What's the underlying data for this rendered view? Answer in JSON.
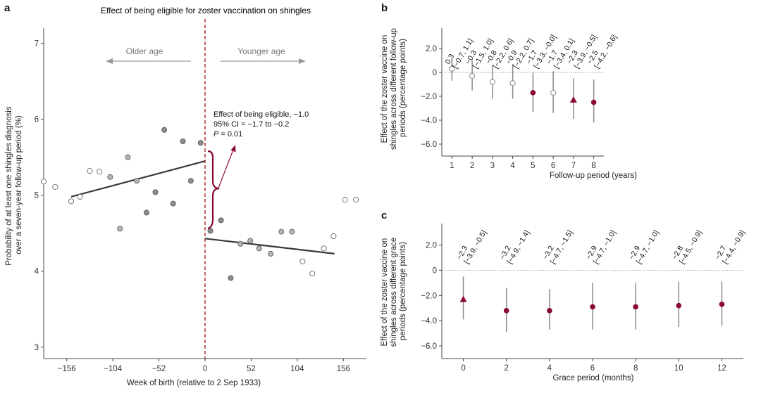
{
  "colors": {
    "accent": "#8b0a32",
    "fit_line": "#3a3a3a",
    "cutoff": "#b22222",
    "grey_point": "#8c8c8c",
    "open_point": "#ffffff",
    "ci_bar": "#8a8a8a",
    "ref_line": "#999999"
  },
  "panels": {
    "a": {
      "label": "a",
      "title": "Effect of being eligible for zoster vaccination on shingles",
      "xlabel": "Week of birth (relative to 2 Sep 1933)",
      "ylabel_lines": [
        "Probability of at least one shingles diagnosis",
        "over a seven-year follow-up period (%)"
      ],
      "older_label": "Older age",
      "younger_label": "Younger age",
      "annotation_lines": [
        "Effect of being eligible, −1.0",
        "95% CI = −1.7 to −0.2"
      ],
      "p_label": "P",
      "p_value": " = 0.01"
    },
    "b": {
      "label": "b",
      "xlabel": "Follow-up period (years)",
      "ylabel_lines": [
        "Effect of the zoster vaccine on",
        "shingles across different follow-up",
        "periods (percentage points)"
      ]
    },
    "c": {
      "label": "c",
      "xlabel": "Grace period (months)",
      "ylabel_lines": [
        "Effect of the zoster vaccine on",
        "shingles across different grace",
        "periods (percentage points)"
      ]
    }
  },
  "chart_data": [
    {
      "type": "scatter",
      "panel": "a",
      "title": "Effect of being eligible for zoster vaccination on shingles",
      "xlabel": "Week of birth (relative to 2 Sep 1933)",
      "ylabel": "Probability of at least one shingles diagnosis over a seven-year follow-up period (%)",
      "xlim": [
        -182,
        182
      ],
      "ylim": [
        2.85,
        7.2
      ],
      "xticks": [
        -156,
        -104,
        -52,
        0,
        52,
        104,
        156
      ],
      "yticks": [
        3,
        4,
        5,
        6,
        7
      ],
      "cutoff_x": 0,
      "points": [
        {
          "x": -182,
          "y": 5.18,
          "style": "open"
        },
        {
          "x": -169,
          "y": 5.11,
          "style": "open"
        },
        {
          "x": -151,
          "y": 4.92,
          "style": "open"
        },
        {
          "x": -141,
          "y": 4.98,
          "style": "open"
        },
        {
          "x": -130,
          "y": 5.32,
          "style": "open"
        },
        {
          "x": -119,
          "y": 5.31,
          "style": "open"
        },
        {
          "x": -107,
          "y": 5.24,
          "style": "grey_light"
        },
        {
          "x": -96,
          "y": 4.56,
          "style": "grey_light"
        },
        {
          "x": -87,
          "y": 5.5,
          "style": "grey_light"
        },
        {
          "x": -77,
          "y": 5.19,
          "style": "grey_light"
        },
        {
          "x": -66,
          "y": 4.77,
          "style": "grey"
        },
        {
          "x": -56,
          "y": 5.04,
          "style": "grey"
        },
        {
          "x": -46,
          "y": 5.86,
          "style": "grey"
        },
        {
          "x": -36,
          "y": 4.89,
          "style": "grey"
        },
        {
          "x": -25,
          "y": 5.71,
          "style": "grey"
        },
        {
          "x": -16,
          "y": 5.19,
          "style": "grey"
        },
        {
          "x": -5,
          "y": 5.69,
          "style": "grey"
        },
        {
          "x": 6,
          "y": 4.53,
          "style": "grey"
        },
        {
          "x": 18,
          "y": 4.67,
          "style": "grey"
        },
        {
          "x": 29,
          "y": 3.91,
          "style": "grey"
        },
        {
          "x": 40,
          "y": 4.36,
          "style": "grey_light"
        },
        {
          "x": 51,
          "y": 4.4,
          "style": "grey_light"
        },
        {
          "x": 61,
          "y": 4.3,
          "style": "grey_light"
        },
        {
          "x": 74,
          "y": 4.23,
          "style": "grey_light"
        },
        {
          "x": 86,
          "y": 4.52,
          "style": "grey_light"
        },
        {
          "x": 98,
          "y": 4.52,
          "style": "grey_light"
        },
        {
          "x": 110,
          "y": 4.13,
          "style": "open"
        },
        {
          "x": 121,
          "y": 3.97,
          "style": "open"
        },
        {
          "x": 134,
          "y": 4.3,
          "style": "open"
        },
        {
          "x": 145,
          "y": 4.46,
          "style": "open"
        },
        {
          "x": 158,
          "y": 4.94,
          "style": "open"
        },
        {
          "x": 170,
          "y": 4.94,
          "style": "open"
        }
      ],
      "fit_lines": [
        {
          "x": [
            -151,
            0
          ],
          "y": [
            4.98,
            5.45
          ]
        },
        {
          "x": [
            0,
            146
          ],
          "y": [
            4.43,
            4.23
          ]
        }
      ],
      "annotation": "Effect of being eligible, −1.0; 95% CI = −1.7 to −0.2; P = 0.01"
    },
    {
      "type": "scatter",
      "panel": "b",
      "xlabel": "Follow-up period (years)",
      "ylabel": "Effect of the zoster vaccine on shingles across different follow-up periods (percentage points)",
      "xlim": [
        0.5,
        8.5
      ],
      "ylim": [
        -7,
        3.7
      ],
      "xticks": [
        1,
        2,
        3,
        4,
        5,
        6,
        7,
        8
      ],
      "yticks": [
        2.0,
        0,
        -2.0,
        -4.0,
        -6.0
      ],
      "points": [
        {
          "x": 1,
          "estimate": 0.3,
          "ci": [
            -0.7,
            1.1
          ],
          "label": "0.3",
          "ci_label": "[−0.7, 1.1]",
          "marker": "open"
        },
        {
          "x": 2,
          "estimate": -0.3,
          "ci": [
            -1.5,
            1.0
          ],
          "label": "−0.3",
          "ci_label": "[−1.5, 1.0]",
          "marker": "open"
        },
        {
          "x": 3,
          "estimate": -0.8,
          "ci": [
            -2.2,
            0.6
          ],
          "label": "−0.8",
          "ci_label": "[−2.2, 0.6]",
          "marker": "open"
        },
        {
          "x": 4,
          "estimate": -0.9,
          "ci": [
            -2.2,
            0.7
          ],
          "label": "−0.9",
          "ci_label": "[−2.2, 0.7]",
          "marker": "open"
        },
        {
          "x": 5,
          "estimate": -1.7,
          "ci": [
            -3.3,
            -0.0
          ],
          "label": "−1.7",
          "ci_label": "[−3.3, −0.0]",
          "marker": "filled"
        },
        {
          "x": 6,
          "estimate": -1.7,
          "ci": [
            -3.4,
            0.1
          ],
          "label": "−1.7",
          "ci_label": "[−3.4, 0.1]",
          "marker": "open"
        },
        {
          "x": 7,
          "estimate": -2.3,
          "ci": [
            -3.9,
            -0.5
          ],
          "label": "−2.3",
          "ci_label": "[−3.9, −0.5]",
          "marker": "triangle"
        },
        {
          "x": 8,
          "estimate": -2.5,
          "ci": [
            -4.2,
            -0.6
          ],
          "label": "−2.5",
          "ci_label": "[−4.2, −0.6]",
          "marker": "filled"
        }
      ]
    },
    {
      "type": "scatter",
      "panel": "c",
      "xlabel": "Grace period (months)",
      "ylabel": "Effect of the zoster vaccine on shingles across different grace periods (percentage points)",
      "xlim": [
        -1,
        13
      ],
      "ylim": [
        -7,
        3.7
      ],
      "xticks": [
        0,
        2,
        4,
        6,
        8,
        10,
        12
      ],
      "yticks": [
        2.0,
        0,
        -2.0,
        -4.0,
        -6.0
      ],
      "points": [
        {
          "x": 0,
          "estimate": -2.3,
          "ci": [
            -3.9,
            -0.5
          ],
          "label": "−2.3",
          "ci_label": "[−3.9, −0.5]",
          "marker": "triangle"
        },
        {
          "x": 2,
          "estimate": -3.2,
          "ci": [
            -4.9,
            -1.4
          ],
          "label": "−3.2",
          "ci_label": "[−4.9, −1.4]",
          "marker": "filled"
        },
        {
          "x": 4,
          "estimate": -3.2,
          "ci": [
            -4.7,
            -1.5
          ],
          "label": "−3.2",
          "ci_label": "[−4.7, −1.5]",
          "marker": "filled"
        },
        {
          "x": 6,
          "estimate": -2.9,
          "ci": [
            -4.7,
            -1.0
          ],
          "label": "−2.9",
          "ci_label": "[−4.7, −1.0]",
          "marker": "filled"
        },
        {
          "x": 8,
          "estimate": -2.9,
          "ci": [
            -4.7,
            -1.0
          ],
          "label": "−2.9",
          "ci_label": "[−4.7, −1.0]",
          "marker": "filled"
        },
        {
          "x": 10,
          "estimate": -2.8,
          "ci": [
            -4.5,
            -0.9
          ],
          "label": "−2.8",
          "ci_label": "[−4.5, −0.9]",
          "marker": "filled"
        },
        {
          "x": 12,
          "estimate": -2.7,
          "ci": [
            -4.4,
            -0.9
          ],
          "label": "−2.7",
          "ci_label": "[−4.4, −0.9]",
          "marker": "filled"
        }
      ]
    }
  ]
}
